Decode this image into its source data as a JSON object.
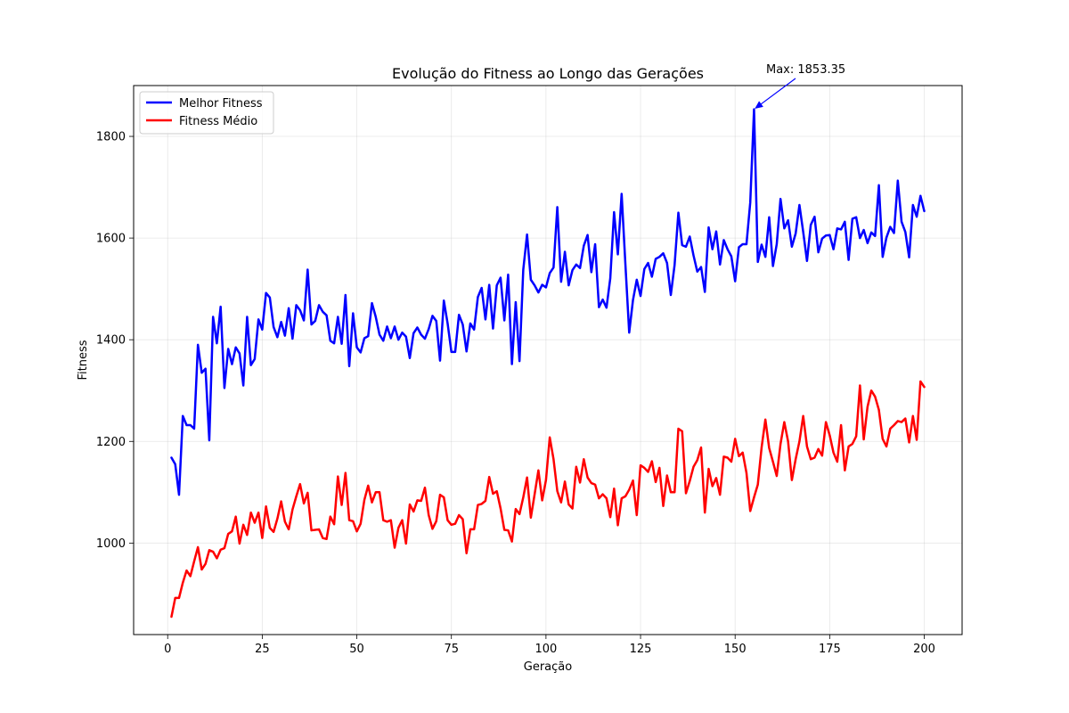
{
  "chart_data": {
    "type": "line",
    "title": "Evolução do Fitness ao Longo das Gerações",
    "xlabel": "Geração",
    "ylabel": "Fitness",
    "xlim": [
      -9,
      210
    ],
    "ylim": [
      820,
      1900
    ],
    "xticks": [
      0,
      25,
      50,
      75,
      100,
      125,
      150,
      175,
      200
    ],
    "yticks": [
      1000,
      1200,
      1400,
      1600,
      1800
    ],
    "grid": true,
    "legend_position": "top-left",
    "annotation": {
      "text": "Max: 1853.35",
      "x": 155,
      "y": 1853.35
    },
    "x_start": 1,
    "series": [
      {
        "name": "Melhor Fitness",
        "color": "#0000ff",
        "values": [
          1168,
          1155,
          1095,
          1250,
          1232,
          1232,
          1225,
          1390,
          1335,
          1343,
          1202,
          1445,
          1393,
          1465,
          1305,
          1382,
          1352,
          1385,
          1373,
          1310,
          1445,
          1350,
          1362,
          1440,
          1420,
          1492,
          1483,
          1425,
          1405,
          1435,
          1408,
          1462,
          1402,
          1468,
          1458,
          1438,
          1538,
          1430,
          1437,
          1468,
          1455,
          1448,
          1398,
          1393,
          1445,
          1392,
          1488,
          1348,
          1452,
          1385,
          1375,
          1403,
          1407,
          1472,
          1445,
          1410,
          1398,
          1426,
          1403,
          1426,
          1400,
          1414,
          1406,
          1364,
          1413,
          1424,
          1410,
          1402,
          1421,
          1447,
          1437,
          1359,
          1477,
          1432,
          1376,
          1376,
          1449,
          1430,
          1377,
          1432,
          1420,
          1484,
          1502,
          1440,
          1508,
          1422,
          1507,
          1522,
          1438,
          1528,
          1352,
          1474,
          1358,
          1538,
          1607,
          1518,
          1507,
          1493,
          1508,
          1503,
          1531,
          1542,
          1661,
          1514,
          1573,
          1507,
          1537,
          1548,
          1541,
          1585,
          1606,
          1533,
          1588,
          1464,
          1479,
          1463,
          1521,
          1651,
          1568,
          1687,
          1548,
          1414,
          1478,
          1518,
          1486,
          1539,
          1551,
          1524,
          1559,
          1563,
          1570,
          1551,
          1488,
          1547,
          1650,
          1586,
          1583,
          1603,
          1566,
          1534,
          1543,
          1494,
          1621,
          1578,
          1613,
          1548,
          1596,
          1578,
          1564,
          1515,
          1582,
          1588,
          1588,
          1670,
          1853.35,
          1553,
          1587,
          1563,
          1641,
          1545,
          1588,
          1677,
          1619,
          1635,
          1583,
          1609,
          1665,
          1612,
          1555,
          1626,
          1642,
          1572,
          1599,
          1605,
          1606,
          1578,
          1619,
          1617,
          1632,
          1557,
          1638,
          1641,
          1600,
          1616,
          1590,
          1611,
          1604,
          1704,
          1563,
          1601,
          1622,
          1610,
          1713,
          1632,
          1612,
          1562,
          1665,
          1642,
          1683,
          1653
        ]
      },
      {
        "name": "Fitness Médio",
        "color": "#ff0000",
        "values": [
          855,
          892,
          892,
          922,
          946,
          935,
          964,
          992,
          948,
          959,
          986,
          983,
          970,
          987,
          990,
          1018,
          1023,
          1052,
          999,
          1036,
          1016,
          1060,
          1040,
          1060,
          1010,
          1072,
          1030,
          1022,
          1048,
          1082,
          1042,
          1027,
          1066,
          1092,
          1116,
          1078,
          1099,
          1025,
          1026,
          1027,
          1010,
          1008,
          1052,
          1037,
          1131,
          1075,
          1138,
          1045,
          1043,
          1023,
          1038,
          1085,
          1113,
          1080,
          1100,
          1100,
          1045,
          1042,
          1045,
          991,
          1030,
          1045,
          999,
          1076,
          1062,
          1084,
          1083,
          1109,
          1055,
          1028,
          1043,
          1095,
          1090,
          1045,
          1036,
          1038,
          1055,
          1047,
          980,
          1027,
          1027,
          1075,
          1077,
          1083,
          1130,
          1097,
          1102,
          1068,
          1026,
          1025,
          1003,
          1067,
          1057,
          1090,
          1129,
          1050,
          1096,
          1143,
          1084,
          1124,
          1208,
          1165,
          1102,
          1080,
          1121,
          1076,
          1068,
          1150,
          1119,
          1165,
          1129,
          1118,
          1115,
          1088,
          1096,
          1088,
          1051,
          1107,
          1035,
          1088,
          1092,
          1105,
          1123,
          1055,
          1153,
          1148,
          1140,
          1161,
          1120,
          1148,
          1073,
          1133,
          1100,
          1100,
          1225,
          1220,
          1098,
          1122,
          1150,
          1163,
          1188,
          1060,
          1146,
          1112,
          1128,
          1095,
          1170,
          1168,
          1160,
          1205,
          1171,
          1178,
          1138,
          1063,
          1090,
          1115,
          1188,
          1243,
          1187,
          1160,
          1132,
          1195,
          1238,
          1200,
          1124,
          1165,
          1200,
          1250,
          1190,
          1165,
          1168,
          1185,
          1172,
          1238,
          1212,
          1178,
          1160,
          1232,
          1143,
          1190,
          1195,
          1210,
          1310,
          1204,
          1268,
          1300,
          1288,
          1262,
          1205,
          1190,
          1225,
          1232,
          1240,
          1238,
          1245,
          1198,
          1250,
          1203,
          1318,
          1307
        ]
      }
    ]
  }
}
